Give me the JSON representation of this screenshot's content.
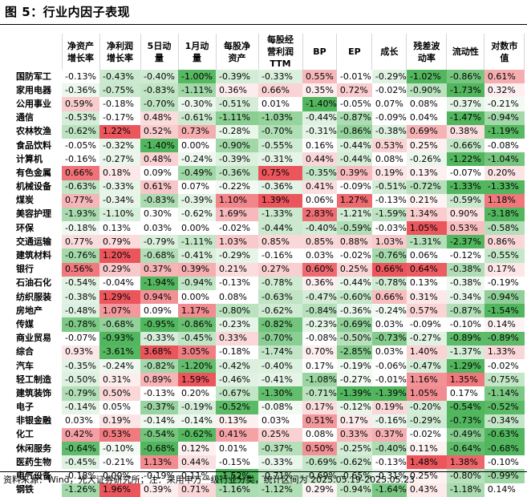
{
  "title": "图 5：行业内因子表现",
  "columns": [
    "净资产增长率",
    "净利润增长率",
    "5日动量",
    "1月动量",
    "每股净资产",
    "每股经营利润TTM",
    "BP",
    "EP",
    "成长",
    "残差波动率",
    "流动性",
    "对数市值"
  ],
  "header_lines": [
    [
      "净资产",
      "增长率"
    ],
    [
      "净利润",
      "增长率"
    ],
    [
      "5日动",
      "量"
    ],
    [
      "1月动",
      "量"
    ],
    [
      "每股净",
      "资产"
    ],
    [
      "每股经",
      "营利润",
      "TTM"
    ],
    [
      "BP"
    ],
    [
      "EP"
    ],
    [
      "成长"
    ],
    [
      "残差波",
      "动率"
    ],
    [
      "流动性"
    ],
    [
      "对数市",
      "值"
    ]
  ],
  "rows": [
    {
      "name": "国防军工",
      "values": [
        "-0.13%",
        "-0.43%",
        "-0.40%",
        "-1.00%",
        "-0.39%",
        "-0.33%",
        "0.55%",
        "-0.01%",
        "-0.29%",
        "-1.02%",
        "-0.86%",
        "0.61%"
      ]
    },
    {
      "name": "家用电器",
      "values": [
        "-0.36%",
        "-0.75%",
        "-0.83%",
        "-1.11%",
        "0.36%",
        "0.66%",
        "0.35%",
        "0.72%",
        "-0.02%",
        "-0.90%",
        "-1.73%",
        "0.32%"
      ]
    },
    {
      "name": "公用事业",
      "values": [
        "0.59%",
        "-0.18%",
        "-0.70%",
        "-0.30%",
        "-0.51%",
        "0.01%",
        "-1.40%",
        "-0.05%",
        "0.07%",
        "0.08%",
        "-0.37%",
        "-0.21%"
      ]
    },
    {
      "name": "通信",
      "values": [
        "-0.53%",
        "-0.17%",
        "0.48%",
        "-0.61%",
        "-1.11%",
        "-1.03%",
        "-0.44%",
        "-0.87%",
        "-0.09%",
        "0.04%",
        "-1.47%",
        "-0.94%"
      ]
    },
    {
      "name": "农林牧渔",
      "values": [
        "-0.62%",
        "1.22%",
        "0.52%",
        "0.73%",
        "-0.28%",
        "-0.70%",
        "-0.31%",
        "-0.86%",
        "-0.38%",
        "0.69%",
        "0.38%",
        "-1.19%"
      ]
    },
    {
      "name": "食品饮料",
      "values": [
        "-0.05%",
        "-0.32%",
        "-1.40%",
        "0.00%",
        "-0.90%",
        "-0.55%",
        "0.16%",
        "-0.44%",
        "0.53%",
        "0.25%",
        "-0.66%",
        "-0.08%"
      ]
    },
    {
      "name": "计算机",
      "values": [
        "-0.16%",
        "-0.27%",
        "0.48%",
        "-0.24%",
        "-0.39%",
        "-0.31%",
        "0.44%",
        "-0.44%",
        "0.08%",
        "-0.26%",
        "-1.22%",
        "-1.04%"
      ]
    },
    {
      "name": "有色金属",
      "values": [
        "0.66%",
        "0.18%",
        "0.09%",
        "-0.49%",
        "-0.36%",
        "0.75%",
        "-0.35%",
        "0.39%",
        "0.19%",
        "0.13%",
        "-0.07%",
        "0.20%"
      ]
    },
    {
      "name": "机械设备",
      "values": [
        "-0.63%",
        "-0.33%",
        "0.61%",
        "0.07%",
        "-0.22%",
        "-0.36%",
        "0.41%",
        "-0.09%",
        "-0.51%",
        "-0.72%",
        "-1.33%",
        "-1.33%"
      ]
    },
    {
      "name": "煤炭",
      "values": [
        "0.77%",
        "-0.34%",
        "-0.83%",
        "-0.39%",
        "1.10%",
        "1.39%",
        "0.06%",
        "1.27%",
        "-0.13%",
        "0.21%",
        "-0.59%",
        "1.18%"
      ]
    },
    {
      "name": "美容护理",
      "values": [
        "-1.93%",
        "-1.10%",
        "0.30%",
        "-0.62%",
        "1.69%",
        "-1.33%",
        "2.83%",
        "-1.21%",
        "-1.59%",
        "1.34%",
        "0.90%",
        "-3.18%"
      ]
    },
    {
      "name": "环保",
      "values": [
        "-0.18%",
        "0.13%",
        "0.03%",
        "0.00%",
        "-0.02%",
        "-0.44%",
        "-0.40%",
        "-0.59%",
        "-0.03%",
        "1.05%",
        "0.53%",
        "-0.58%"
      ]
    },
    {
      "name": "交通运输",
      "values": [
        "0.77%",
        "0.79%",
        "-0.79%",
        "-1.11%",
        "1.03%",
        "0.85%",
        "0.85%",
        "0.88%",
        "1.03%",
        "-1.31%",
        "-2.37%",
        "0.86%"
      ]
    },
    {
      "name": "建筑材料",
      "values": [
        "-0.76%",
        "1.20%",
        "-0.68%",
        "-0.41%",
        "-0.29%",
        "-0.16%",
        "0.03%",
        "-0.02%",
        "-0.76%",
        "0.06%",
        "-0.12%",
        "-0.55%"
      ]
    },
    {
      "name": "银行",
      "values": [
        "0.56%",
        "0.29%",
        "0.37%",
        "0.39%",
        "0.21%",
        "0.27%",
        "0.60%",
        "0.25%",
        "0.66%",
        "0.64%",
        "-0.38%",
        "0.17%"
      ]
    },
    {
      "name": "石油石化",
      "values": [
        "-0.54%",
        "-0.04%",
        "-1.94%",
        "-0.94%",
        "-0.13%",
        "-0.78%",
        "0.36%",
        "-0.44%",
        "-0.78%",
        "0.13%",
        "-0.38%",
        "-0.19%"
      ]
    },
    {
      "name": "纺织服装",
      "values": [
        "-0.38%",
        "1.29%",
        "0.94%",
        "0.00%",
        "0.08%",
        "-0.63%",
        "-0.47%",
        "-0.60%",
        "0.66%",
        "0.31%",
        "-0.34%",
        "-0.94%"
      ]
    },
    {
      "name": "房地产",
      "values": [
        "-0.48%",
        "1.07%",
        "0.09%",
        "1.17%",
        "-0.80%",
        "-0.62%",
        "-0.84%",
        "-0.36%",
        "-0.24%",
        "0.57%",
        "-0.87%",
        "-1.54%"
      ]
    },
    {
      "name": "传媒",
      "values": [
        "-0.78%",
        "-0.68%",
        "-0.95%",
        "-0.86%",
        "-0.23%",
        "-0.82%",
        "-0.23%",
        "-0.69%",
        "0.03%",
        "-0.09%",
        "-0.10%",
        "0.14%"
      ]
    },
    {
      "name": "商业贸易",
      "values": [
        "-0.07%",
        "-0.93%",
        "-0.33%",
        "-0.45%",
        "0.33%",
        "-0.70%",
        "-0.08%",
        "-0.50%",
        "-0.73%",
        "-0.27%",
        "-0.89%",
        "-0.89%"
      ]
    },
    {
      "name": "综合",
      "values": [
        "0.93%",
        "-3.61%",
        "3.68%",
        "3.05%",
        "-0.18%",
        "-1.74%",
        "0.70%",
        "-2.85%",
        "0.03%",
        "1.40%",
        "-1.37%",
        "1.33%"
      ]
    },
    {
      "name": "汽车",
      "values": [
        "-0.35%",
        "-0.24%",
        "-0.82%",
        "-1.20%",
        "-0.42%",
        "-0.40%",
        "0.17%",
        "-0.19%",
        "-0.06%",
        "-0.47%",
        "-1.29%",
        "-0.02%"
      ]
    },
    {
      "name": "轻工制造",
      "values": [
        "-0.50%",
        "0.31%",
        "0.89%",
        "1.59%",
        "-0.46%",
        "-0.41%",
        "-1.08%",
        "-0.27%",
        "-0.01%",
        "1.16%",
        "1.35%",
        "-0.75%"
      ]
    },
    {
      "name": "建筑装饰",
      "values": [
        "-0.79%",
        "0.50%",
        "-0.13%",
        "0.20%",
        "-0.67%",
        "-1.30%",
        "-0.71%",
        "-1.39%",
        "-1.39%",
        "1.05%",
        "0.17%",
        "-1.14%"
      ]
    },
    {
      "name": "电子",
      "values": [
        "-0.14%",
        "0.05%",
        "-0.37%",
        "-0.19%",
        "-0.52%",
        "-0.08%",
        "0.17%",
        "-0.12%",
        "0.19%",
        "-0.20%",
        "-0.54%",
        "-0.52%"
      ]
    },
    {
      "name": "非银金融",
      "values": [
        "0.03%",
        "0.19%",
        "-0.14%",
        "-0.14%",
        "0.13%",
        "0.03%",
        "0.51%",
        "0.17%",
        "-0.16%",
        "-0.29%",
        "-0.73%",
        "-0.34%"
      ]
    },
    {
      "name": "化工",
      "values": [
        "0.42%",
        "0.53%",
        "-0.54%",
        "-0.62%",
        "0.41%",
        "0.25%",
        "0.08%",
        "0.33%",
        "0.37%",
        "-0.02%",
        "-0.49%",
        "-0.63%"
      ]
    },
    {
      "name": "休闲服务",
      "values": [
        "-0.64%",
        "-0.10%",
        "-0.68%",
        "0.12%",
        "0.01%",
        "-0.37%",
        "0.50%",
        "-0.25%",
        "-0.40%",
        "0.11%",
        "-0.64%",
        "-0.68%"
      ]
    },
    {
      "name": "医药生物",
      "values": [
        "-0.45%",
        "-0.21%",
        "1.13%",
        "0.44%",
        "-0.15%",
        "-0.33%",
        "-0.69%",
        "-0.62%",
        "-0.13%",
        "1.48%",
        "1.38%",
        "-0.10%"
      ]
    },
    {
      "name": "电气设备",
      "values": [
        "-0.18%",
        "0.00%",
        "-0.19%",
        "0.11%",
        "-1.52%",
        "-0.71%",
        "-0.69%",
        "-0.65%",
        "-0.31%",
        "0.25%",
        "-0.80%",
        "-0.99%"
      ]
    },
    {
      "name": "钢铁",
      "values": [
        "-1.26%",
        "1.96%",
        "0.39%",
        "0.71%",
        "-1.16%",
        "-1.12%",
        "0.29%",
        "-0.94%",
        "-1.64%",
        "0.43%",
        "-1.18%",
        "0.14%"
      ]
    }
  ],
  "colors": {
    "positive": "#e8434a",
    "negative": "#3fae4c",
    "background": "#ffffff"
  },
  "source": "资料来源：Wind，光大证券研究所；注：采用申万一级行业分类，统计区间为 2025.05.19-2025.05.23"
}
